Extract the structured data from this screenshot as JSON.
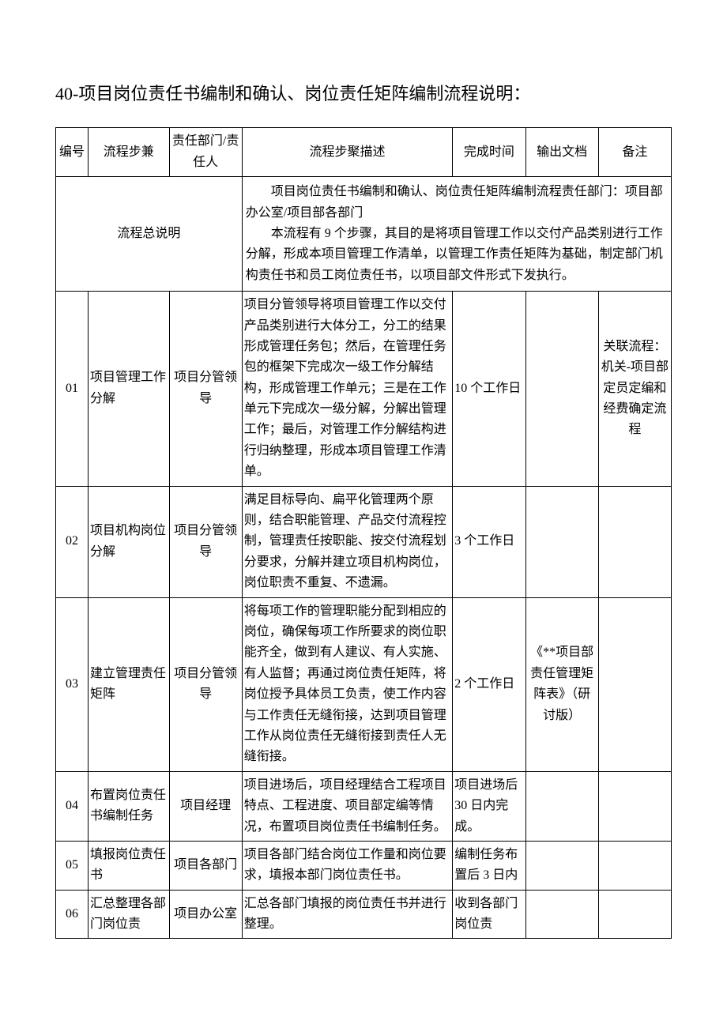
{
  "title": "40-项目岗位责任书编制和确认、岗位责任矩阵编制流程说明：",
  "headers": {
    "no": "编号",
    "step": "流程步兼",
    "resp": "责任部门/责任人",
    "desc": "流程步聚描述",
    "time": "完成时间",
    "out": "输出文档",
    "note": "备注"
  },
  "summary": {
    "label": "流程总说明",
    "p1": "项目岗位责任书编制和确认、岗位责任矩阵编制流程责任部门：项目部办公室/项目部各部门",
    "p2": "本流程有 9 个步骤，其目的是将项目管理工作以交付产品类别进行工作分解，形成本项目管理工作清单，以管理工作责任矩阵为基础，制定部门机构责任书和员工岗位责任书，以项目部文件形式下发执行。"
  },
  "rows": [
    {
      "no": "01",
      "step": "项目管理工作分解",
      "resp": "项目分管领导",
      "desc": "项目分管领导将项目管理工作以交付产品类别进行大体分工，分工的结果形成管理任务包；然后，在管理任务包的框架下完成次一级工作分解结构，形成管理工作单元；三是在工作单元下完成次一级分解，分解出管理工作；最后，对管理工作分解结构进行归纳整理，形成本项目管理工作清单。",
      "time": "10 个工作日",
      "out": "",
      "note": "关联流程：机关-项目部定员定编和经费确定流程"
    },
    {
      "no": "02",
      "step": "项目机构岗位分解",
      "resp": "项目分管领导",
      "desc": "满足目标导向、扁平化管理两个原则，结合职能管理、产品交付流程控制，管理责任按职能、按交付流程划分要求，分解并建立项目机构岗位，岗位职责不重复、不遗漏。",
      "time": "3 个工作日",
      "out": "",
      "note": ""
    },
    {
      "no": "03",
      "step": "建立管理责任矩阵",
      "resp": "项目分管领导",
      "desc": "将每项工作的管理职能分配到相应的岗位，确保每项工作所要求的岗位职能齐全，做到有人建议、有人实施、有人监督；再通过岗位责任矩阵，将岗位授予具体员工负责，使工作内容与工作责任无缝衔接，达到项目管理工作从岗位责任无缝衔接到责任人无缝衔接。",
      "time": "2 个工作日",
      "out": "《**项目部责任管理矩阵表》（研讨版）",
      "note": ""
    },
    {
      "no": "04",
      "step": "布置岗位责任书编制任务",
      "resp": "项目经理",
      "desc": "项目进场后，项目经理结合工程项目特点、工程进度、项目部定编等情况，布置项目岗位责任书编制任务。",
      "time": "项目进场后30 日内完成。",
      "out": "",
      "note": ""
    },
    {
      "no": "05",
      "step": "填报岗位责任书",
      "resp": "项目各部门",
      "desc": "项目各部门结合岗位工作量和岗位要求，填报本部门岗位责任书。",
      "time": "编制任务布置后 3 日内",
      "out": "",
      "note": ""
    },
    {
      "no": "06",
      "step": "汇总整理各部门岗位责",
      "resp": "项目办公室",
      "desc": "汇总各部门填报的岗位责任书并进行整理。",
      "time": "收到各部门岗位责",
      "out": "",
      "note": ""
    }
  ]
}
